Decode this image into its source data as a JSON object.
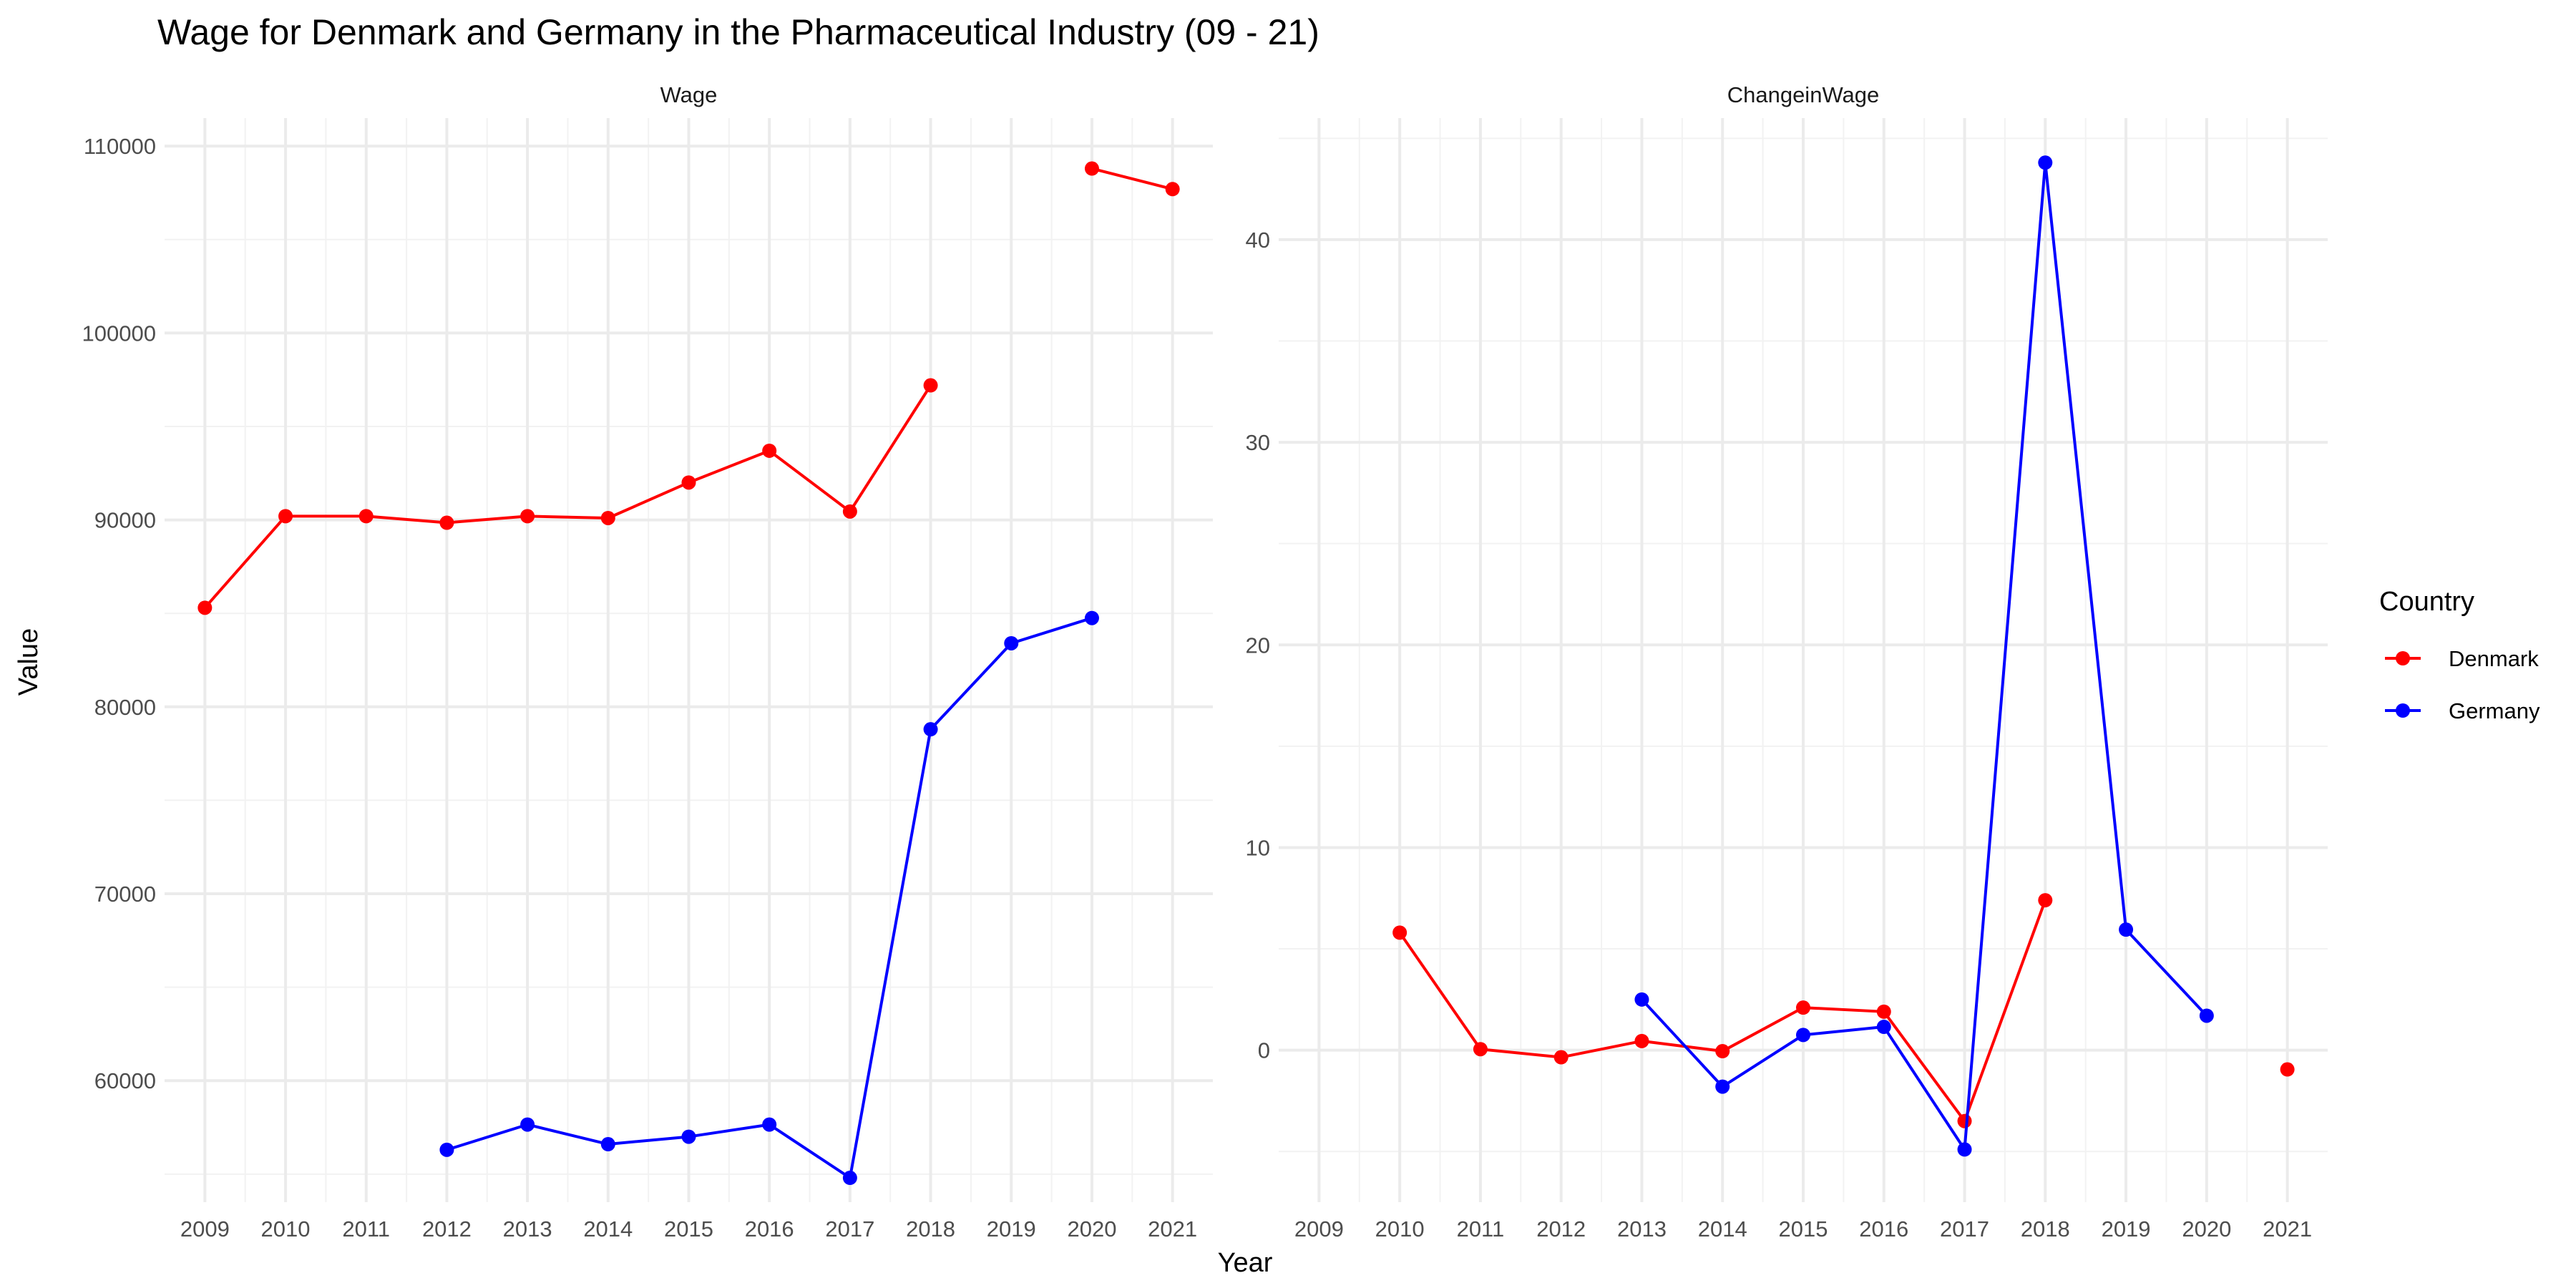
{
  "title": "Wage for Denmark and Germany in the Pharmaceutical Industry (09 - 21)",
  "xlabel": "Year",
  "ylabel": "Value",
  "legend": {
    "title": "Country",
    "entries": [
      {
        "label": "Denmark",
        "color": "#ff0000"
      },
      {
        "label": "Germany",
        "color": "#0000ff"
      }
    ]
  },
  "chart_data": [
    {
      "type": "line",
      "panel": "Wage",
      "x": [
        2009,
        2010,
        2011,
        2012,
        2013,
        2014,
        2015,
        2016,
        2017,
        2018,
        2019,
        2020,
        2021
      ],
      "xlim": [
        2008.5,
        2021.5
      ],
      "ylim": [
        53500,
        111500
      ],
      "yticks": [
        60000,
        70000,
        80000,
        90000,
        100000,
        110000
      ],
      "series": [
        {
          "name": "Denmark",
          "color": "#ff0000",
          "values": [
            85300,
            90200,
            90200,
            89850,
            90200,
            90100,
            92000,
            93700,
            90450,
            97200,
            null,
            108800,
            107700
          ]
        },
        {
          "name": "Germany",
          "color": "#0000ff",
          "values": [
            null,
            null,
            null,
            56300,
            57650,
            56600,
            57000,
            57650,
            54800,
            78800,
            83400,
            84750,
            null
          ]
        }
      ]
    },
    {
      "type": "line",
      "panel": "ChangeinWage",
      "x": [
        2009,
        2010,
        2011,
        2012,
        2013,
        2014,
        2015,
        2016,
        2017,
        2018,
        2019,
        2020,
        2021
      ],
      "xlim": [
        2008.5,
        2021.5
      ],
      "ylim": [
        -7.5,
        46
      ],
      "yticks": [
        0,
        10,
        20,
        30,
        40
      ],
      "series": [
        {
          "name": "Denmark",
          "color": "#ff0000",
          "values": [
            null,
            5.8,
            0.05,
            -0.35,
            0.45,
            -0.05,
            2.1,
            1.9,
            -3.5,
            7.4,
            null,
            null,
            -0.95
          ]
        },
        {
          "name": "Germany",
          "color": "#0000ff",
          "values": [
            null,
            null,
            null,
            null,
            2.5,
            -1.8,
            0.75,
            1.15,
            -4.9,
            43.8,
            5.95,
            1.7,
            null
          ]
        }
      ]
    }
  ]
}
